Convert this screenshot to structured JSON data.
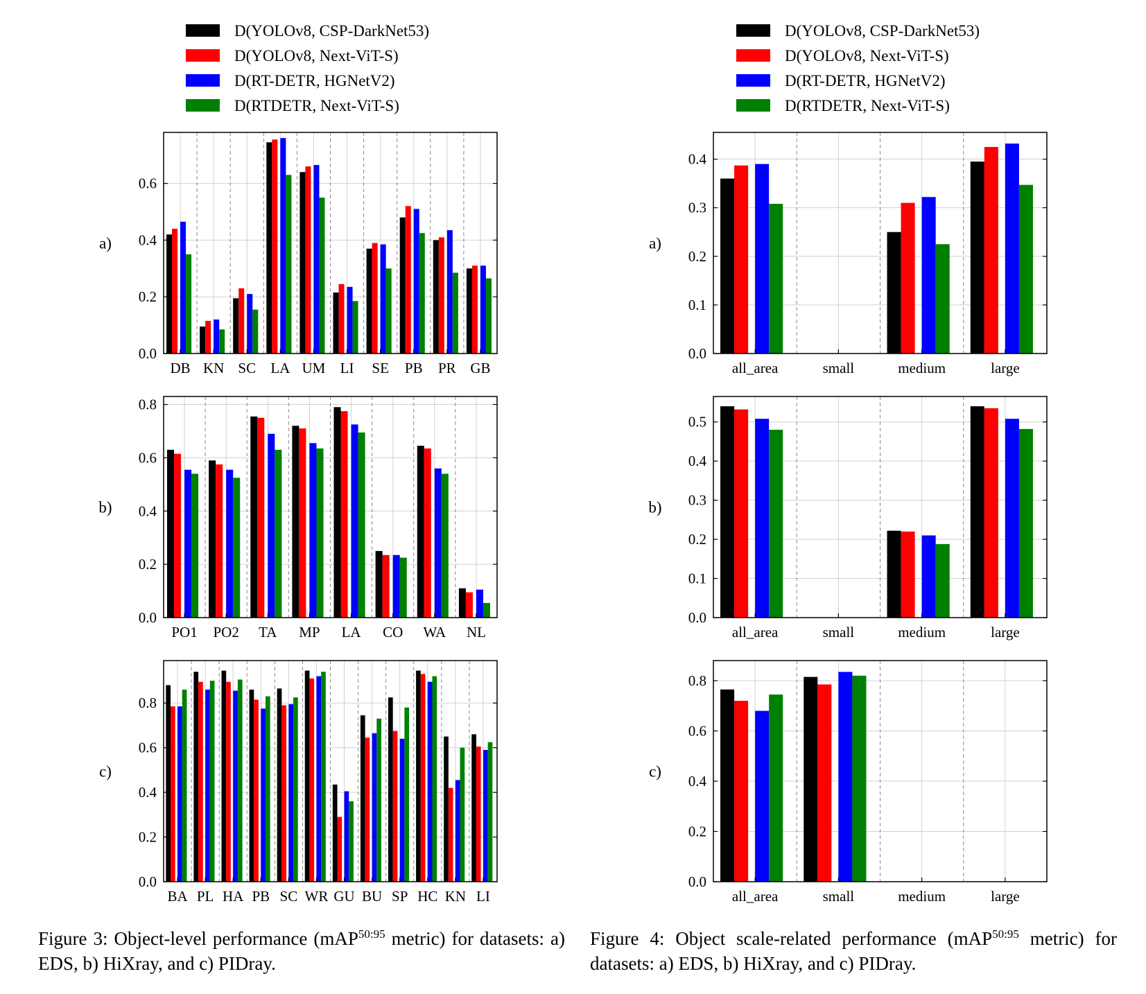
{
  "legend": [
    {
      "label": "D(YOLOv8, CSP-DarkNet53)",
      "color": "#000000"
    },
    {
      "label": "D(YOLOv8, Next-ViT-S)",
      "color": "#ff0000"
    },
    {
      "label": "D(RT-DETR, HGNetV2)",
      "color": "#0000ff"
    },
    {
      "label": "D(RTDETR, Next-ViT-S)",
      "color": "#008000"
    }
  ],
  "chart_data": [
    {
      "type": "bar",
      "figure": 3,
      "panel": "a)",
      "categories": [
        "DB",
        "KN",
        "SC",
        "LA",
        "UM",
        "LI",
        "SE",
        "PB",
        "PR",
        "GB"
      ],
      "ylim": [
        0,
        0.78
      ],
      "yticks": [
        0.0,
        0.2,
        0.4,
        0.6
      ],
      "grid": true,
      "legend": "top",
      "series": [
        {
          "name": "D(YOLOv8, CSP-DarkNet53)",
          "values": [
            0.42,
            0.095,
            0.195,
            0.745,
            0.64,
            0.215,
            0.37,
            0.48,
            0.4,
            0.3
          ]
        },
        {
          "name": "D(YOLOv8, Next-ViT-S)",
          "values": [
            0.44,
            0.115,
            0.23,
            0.755,
            0.66,
            0.245,
            0.39,
            0.52,
            0.41,
            0.31
          ]
        },
        {
          "name": "D(RT-DETR, HGNetV2)",
          "values": [
            0.465,
            0.12,
            0.21,
            0.76,
            0.665,
            0.235,
            0.385,
            0.51,
            0.435,
            0.31
          ]
        },
        {
          "name": "D(RTDETR, Next-ViT-S)",
          "values": [
            0.35,
            0.085,
            0.155,
            0.63,
            0.55,
            0.185,
            0.3,
            0.425,
            0.285,
            0.265
          ]
        }
      ]
    },
    {
      "type": "bar",
      "figure": 3,
      "panel": "b)",
      "categories": [
        "PO1",
        "PO2",
        "TA",
        "MP",
        "LA",
        "CO",
        "WA",
        "NL"
      ],
      "ylim": [
        0,
        0.83
      ],
      "yticks": [
        0.0,
        0.2,
        0.4,
        0.6,
        0.8
      ],
      "grid": true,
      "series": [
        {
          "name": "D(YOLOv8, CSP-DarkNet53)",
          "values": [
            0.63,
            0.59,
            0.755,
            0.72,
            0.79,
            0.25,
            0.645,
            0.11
          ]
        },
        {
          "name": "D(YOLOv8, Next-ViT-S)",
          "values": [
            0.615,
            0.575,
            0.75,
            0.71,
            0.775,
            0.235,
            0.635,
            0.095
          ]
        },
        {
          "name": "D(RT-DETR, HGNetV2)",
          "values": [
            0.555,
            0.555,
            0.69,
            0.655,
            0.725,
            0.235,
            0.56,
            0.105
          ]
        },
        {
          "name": "D(RTDETR, Next-ViT-S)",
          "values": [
            0.54,
            0.525,
            0.63,
            0.635,
            0.695,
            0.225,
            0.54,
            0.055
          ]
        }
      ]
    },
    {
      "type": "bar",
      "figure": 3,
      "panel": "c)",
      "categories": [
        "BA",
        "PL",
        "HA",
        "PB",
        "SC",
        "WR",
        "GU",
        "BU",
        "SP",
        "HC",
        "KN",
        "LI"
      ],
      "ylim": [
        0,
        0.99
      ],
      "yticks": [
        0.0,
        0.2,
        0.4,
        0.6,
        0.8
      ],
      "grid": true,
      "series": [
        {
          "name": "D(YOLOv8, CSP-DarkNet53)",
          "values": [
            0.88,
            0.94,
            0.945,
            0.86,
            0.865,
            0.945,
            0.435,
            0.745,
            0.825,
            0.945,
            0.65,
            0.66
          ]
        },
        {
          "name": "D(YOLOv8, Next-ViT-S)",
          "values": [
            0.785,
            0.895,
            0.895,
            0.815,
            0.79,
            0.91,
            0.29,
            0.645,
            0.675,
            0.93,
            0.42,
            0.605
          ]
        },
        {
          "name": "D(RT-DETR, HGNetV2)",
          "values": [
            0.785,
            0.86,
            0.855,
            0.775,
            0.795,
            0.92,
            0.405,
            0.665,
            0.64,
            0.895,
            0.455,
            0.59
          ]
        },
        {
          "name": "D(RTDETR, Next-ViT-S)",
          "values": [
            0.86,
            0.9,
            0.905,
            0.83,
            0.825,
            0.94,
            0.36,
            0.73,
            0.78,
            0.92,
            0.6,
            0.625
          ]
        }
      ]
    },
    {
      "type": "bar",
      "figure": 4,
      "panel": "a)",
      "categories": [
        "all_area",
        "small",
        "medium",
        "large"
      ],
      "ylim": [
        0,
        0.455
      ],
      "yticks": [
        0.0,
        0.1,
        0.2,
        0.3,
        0.4
      ],
      "grid": true,
      "legend": "top",
      "series": [
        {
          "name": "D(YOLOv8, CSP-DarkNet53)",
          "values": [
            0.36,
            0,
            0.25,
            0.395
          ]
        },
        {
          "name": "D(YOLOv8, Next-ViT-S)",
          "values": [
            0.387,
            0,
            0.31,
            0.425
          ]
        },
        {
          "name": "D(RT-DETR, HGNetV2)",
          "values": [
            0.39,
            0,
            0.322,
            0.432
          ]
        },
        {
          "name": "D(RTDETR, Next-ViT-S)",
          "values": [
            0.308,
            0,
            0.225,
            0.347
          ]
        }
      ]
    },
    {
      "type": "bar",
      "figure": 4,
      "panel": "b)",
      "categories": [
        "all_area",
        "small",
        "medium",
        "large"
      ],
      "ylim": [
        0,
        0.565
      ],
      "yticks": [
        0.0,
        0.1,
        0.2,
        0.3,
        0.4,
        0.5
      ],
      "grid": true,
      "series": [
        {
          "name": "D(YOLOv8, CSP-DarkNet53)",
          "values": [
            0.54,
            0,
            0.222,
            0.54
          ]
        },
        {
          "name": "D(YOLOv8, Next-ViT-S)",
          "values": [
            0.532,
            0,
            0.22,
            0.535
          ]
        },
        {
          "name": "D(RT-DETR, HGNetV2)",
          "values": [
            0.508,
            0,
            0.21,
            0.508
          ]
        },
        {
          "name": "D(RTDETR, Next-ViT-S)",
          "values": [
            0.48,
            0,
            0.188,
            0.482
          ]
        }
      ]
    },
    {
      "type": "bar",
      "figure": 4,
      "panel": "c)",
      "categories": [
        "all_area",
        "small",
        "medium",
        "large"
      ],
      "ylim": [
        0,
        0.88
      ],
      "yticks": [
        0.0,
        0.2,
        0.4,
        0.6,
        0.8
      ],
      "grid": true,
      "series": [
        {
          "name": "D(YOLOv8, CSP-DarkNet53)",
          "values": [
            0.765,
            0.815,
            0,
            0
          ]
        },
        {
          "name": "D(YOLOv8, Next-ViT-S)",
          "values": [
            0.72,
            0.785,
            0,
            0
          ]
        },
        {
          "name": "D(RT-DETR, HGNetV2)",
          "values": [
            0.68,
            0.835,
            0,
            0
          ]
        },
        {
          "name": "D(RTDETR, Next-ViT-S)",
          "values": [
            0.745,
            0.82,
            0,
            0
          ]
        }
      ]
    }
  ],
  "captions": {
    "fig3": {
      "prefix": "Figure 3: Object-level performance (mAP",
      "sup": "50:95",
      "suffix": " metric) for datasets: a) EDS, b) HiXray, and c) PIDray."
    },
    "fig4": {
      "prefix": "Figure 4: Object scale-related performance (mAP",
      "sup": "50:95",
      "suffix": " metric) for datasets: a) EDS, b) HiXray, and c) PIDray."
    }
  }
}
